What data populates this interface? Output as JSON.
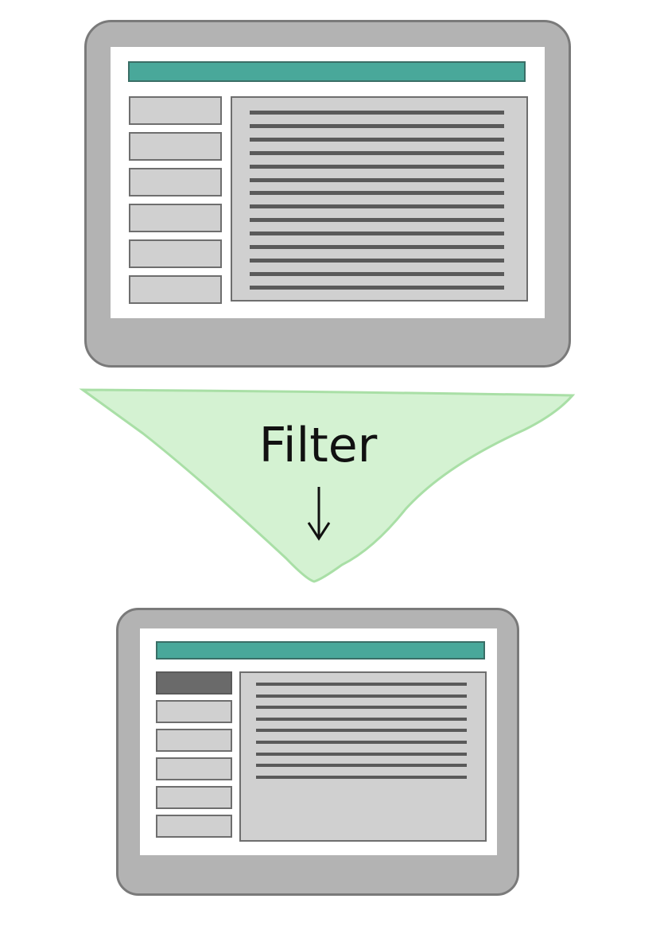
{
  "funnel": {
    "label": "Filter",
    "arrow_icon": "down-arrow-icon",
    "fill_color": "#d4f2d2",
    "stroke_color": "#a9dfa6"
  },
  "colors": {
    "device_frame": "#b3b3b3",
    "header_bar": "#49a89a",
    "panel": "#d0d0d0",
    "selected_item": "#6a6a6a",
    "text_line": "#5a5a5a"
  },
  "before_view": {
    "sidebar_item_count": 6,
    "selected_item": null,
    "content_line_count": 14
  },
  "after_view": {
    "sidebar_item_count": 6,
    "selected_item": 1,
    "content_line_count": 9
  }
}
